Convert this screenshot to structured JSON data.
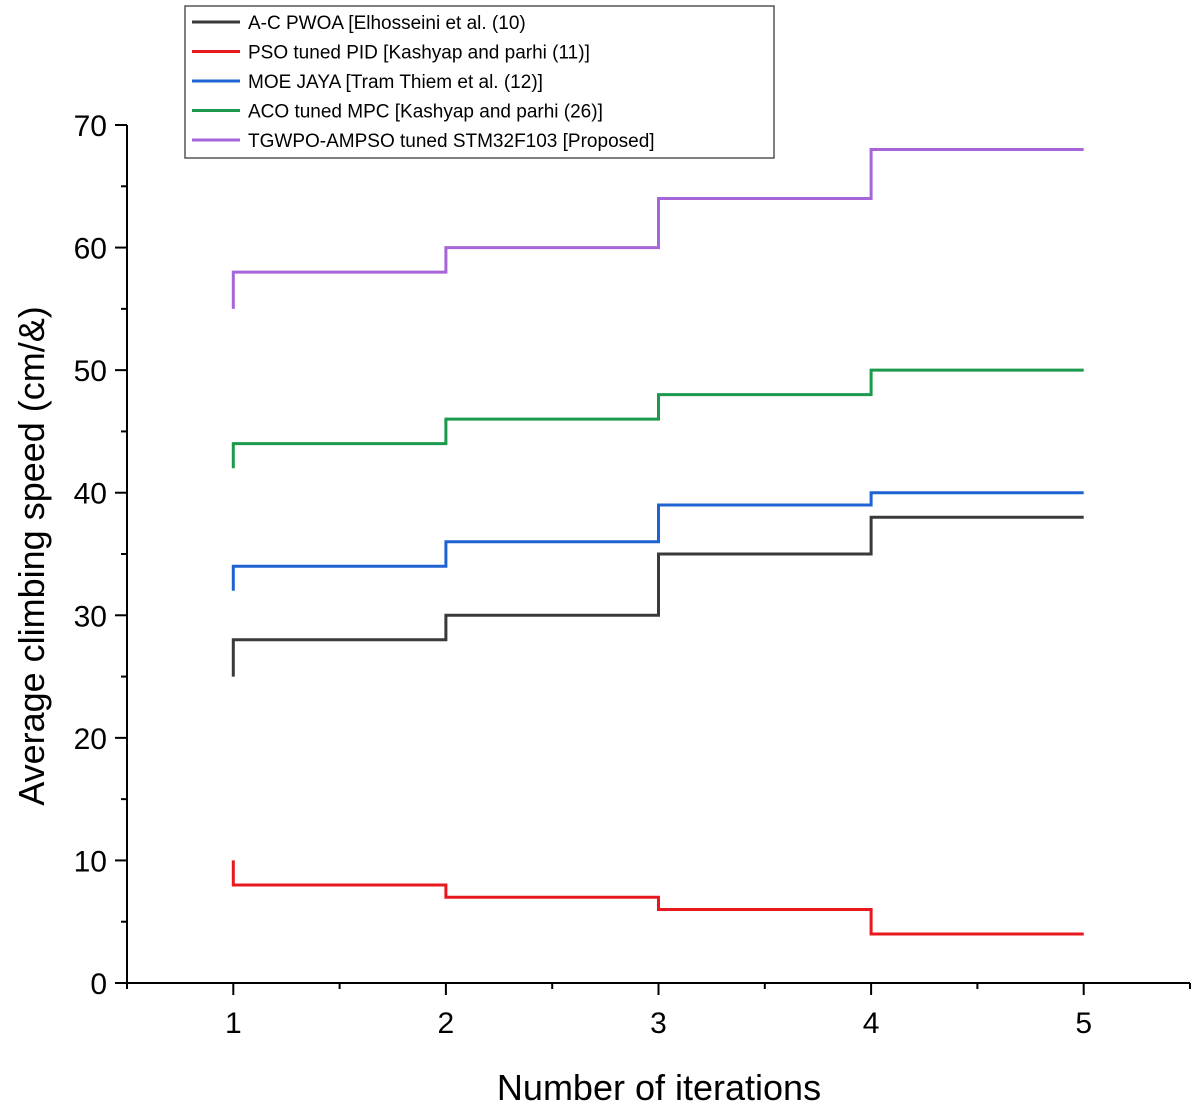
{
  "chart_data": {
    "type": "line",
    "step": "post",
    "title": "",
    "xlabel": "Number of iterations",
    "ylabel": "Average climbing speed (cm/&)",
    "xlim": [
      0.5,
      5.5
    ],
    "ylim": [
      0,
      70
    ],
    "x_ticks": [
      1,
      2,
      3,
      4,
      5
    ],
    "y_ticks": [
      0,
      10,
      20,
      30,
      40,
      50,
      60,
      70
    ],
    "grid": false,
    "legend_position": "top-left",
    "series": [
      {
        "name": "A-C PWOA [Elhosseini et al. (10)",
        "color": "#3a3a3a",
        "start_value": 25,
        "x": [
          1,
          2,
          3,
          4,
          5
        ],
        "values": [
          28,
          30,
          35,
          38,
          38
        ]
      },
      {
        "name": "PSO tuned PID [Kashyap and parhi (11)]",
        "color": "#e8191e",
        "start_value": 10,
        "x": [
          1,
          2,
          3,
          4,
          5
        ],
        "values": [
          8,
          7,
          6,
          4,
          4
        ]
      },
      {
        "name": "MOE JAYA [Tram Thiem et al. (12)]",
        "color": "#1f63d2",
        "start_value": 32,
        "x": [
          1,
          2,
          3,
          4,
          5
        ],
        "values": [
          34,
          36,
          39,
          40,
          40
        ]
      },
      {
        "name": "ACO tuned MPC [Kashyap and parhi (26)]",
        "color": "#1b9a4e",
        "start_value": 42,
        "x": [
          1,
          2,
          3,
          4,
          5
        ],
        "values": [
          44,
          46,
          48,
          50,
          50
        ]
      },
      {
        "name": "TGWPO-AMPSO tuned STM32F103 [Proposed]",
        "color": "#a665d8",
        "start_value": 55,
        "x": [
          1,
          2,
          3,
          4,
          5
        ],
        "values": [
          58,
          60,
          64,
          68,
          68
        ]
      }
    ]
  }
}
